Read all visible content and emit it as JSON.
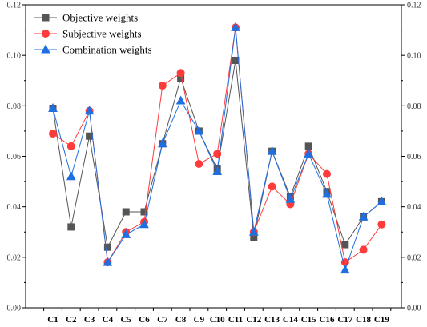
{
  "chart_data": {
    "type": "line",
    "title": "",
    "xlabel": "",
    "ylabel": "",
    "ylim": [
      0,
      0.12
    ],
    "y_ticks": [
      "0.00",
      "0.02",
      "0.04",
      "0.06",
      "0.08",
      "0.10",
      "0.12"
    ],
    "right_axis_mirrors_left": true,
    "grid": false,
    "legend_position": "top-left",
    "categories": [
      "C1",
      "C2",
      "C3",
      "C4",
      "C5",
      "C6",
      "C7",
      "C8",
      "C9",
      "C10",
      "C11",
      "C12",
      "C13",
      "C14",
      "C15",
      "C16",
      "C17",
      "C18",
      "C19"
    ],
    "series": [
      {
        "name": "Objective weights",
        "color": "#555555",
        "marker": "square",
        "values": [
          0.079,
          0.032,
          0.068,
          0.024,
          0.038,
          0.038,
          0.065,
          0.091,
          0.07,
          0.055,
          0.098,
          0.028,
          0.062,
          0.044,
          0.064,
          0.046,
          0.025,
          0.036,
          0.042
        ]
      },
      {
        "name": "Subjective weights",
        "color": "#ff3b3b",
        "marker": "circle",
        "values": [
          0.069,
          0.064,
          0.078,
          0.018,
          0.03,
          0.034,
          0.088,
          0.093,
          0.057,
          0.061,
          0.111,
          0.03,
          0.048,
          0.041,
          0.061,
          0.053,
          0.018,
          0.023,
          0.033
        ]
      },
      {
        "name": "Combination  weights",
        "color": "#1f6fe0",
        "marker": "triangle",
        "values": [
          0.079,
          0.052,
          0.078,
          0.018,
          0.029,
          0.033,
          0.065,
          0.082,
          0.07,
          0.054,
          0.111,
          0.03,
          0.062,
          0.043,
          0.061,
          0.045,
          0.015,
          0.036,
          0.042
        ]
      }
    ]
  }
}
